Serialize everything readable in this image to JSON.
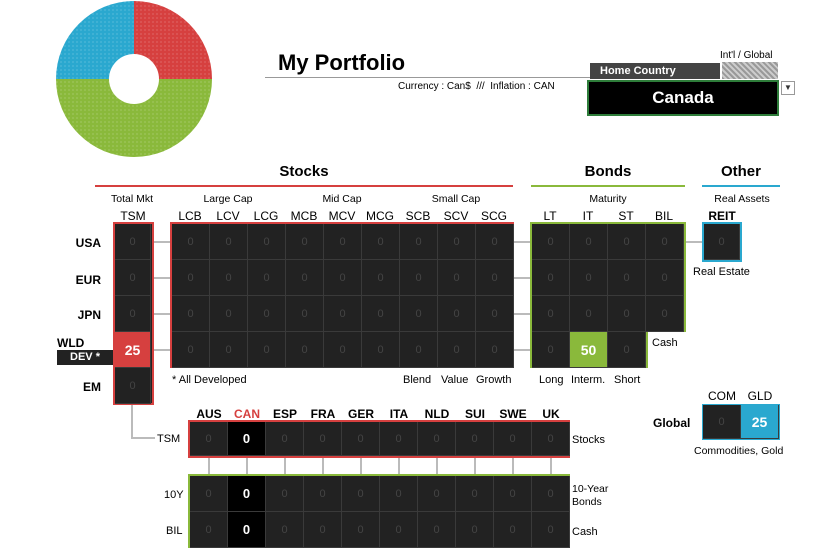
{
  "title": "My Portfolio",
  "currency_info": "Currency : Can$  ///  Inflation : CAN",
  "home_country": {
    "label": "Home Country",
    "value": "Canada",
    "intl_label": "Int'l / Global"
  },
  "sections": {
    "stocks": "Stocks",
    "bonds": "Bonds",
    "other": "Other"
  },
  "groups": {
    "total_mkt": "Total Mkt",
    "large_cap": "Large Cap",
    "mid_cap": "Mid Cap",
    "small_cap": "Small Cap",
    "maturity": "Maturity",
    "real_assets": "Real Assets"
  },
  "stock_cols": [
    "TSM",
    "LCB",
    "LCV",
    "LCG",
    "MCB",
    "MCV",
    "MCG",
    "SCB",
    "SCV",
    "SCG"
  ],
  "bond_cols": [
    "LT",
    "IT",
    "ST",
    "BIL"
  ],
  "reit_col": "REIT",
  "rows": [
    "USA",
    "EUR",
    "JPN",
    "WLD",
    "EM"
  ],
  "dev_badge": "DEV *",
  "tsm_values": [
    "0",
    "0",
    "0",
    "25",
    "0"
  ],
  "grid_zero": "0",
  "bond_highlight": "50",
  "notes": {
    "all_developed": "* All Developed",
    "blend": "Blend",
    "value": "Value",
    "growth": "Growth",
    "long": "Long",
    "interm": "Interm.",
    "short": "Short",
    "cash": "Cash",
    "real_estate": "Real Estate"
  },
  "global": {
    "label": "Global",
    "com": "COM",
    "gld": "GLD",
    "com_value": "0",
    "gld_value": "25",
    "caption": "Commodities, Gold"
  },
  "countries": [
    "AUS",
    "CAN",
    "ESP",
    "FRA",
    "GER",
    "ITA",
    "NLD",
    "SUI",
    "SWE",
    "UK"
  ],
  "country_rows": {
    "tsm": "TSM",
    "ten_y": "10Y",
    "bil": "BIL",
    "stocks": "Stocks",
    "ten_year_bonds_1": "10-Year",
    "ten_year_bonds_2": "Bonds",
    "cash": "Cash"
  },
  "highlight_country_value": "0",
  "colors": {
    "red": "#d6403f",
    "green": "#8ab93b",
    "blue": "#2aa8cf"
  },
  "chart_data": {
    "type": "pie",
    "categories": [
      "Stocks",
      "Bonds",
      "Other"
    ],
    "values": [
      25,
      50,
      25
    ]
  }
}
